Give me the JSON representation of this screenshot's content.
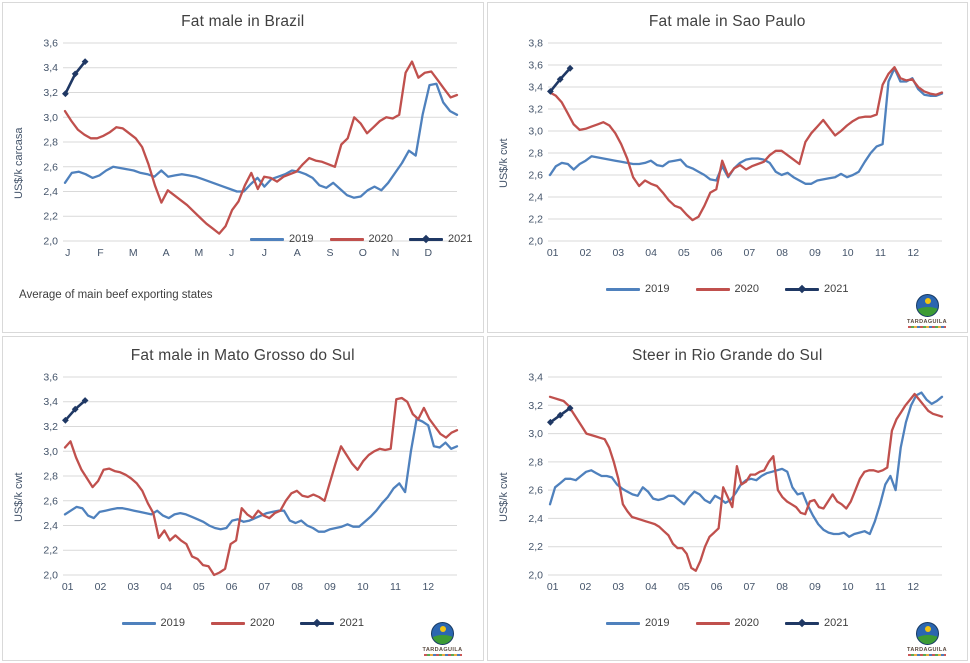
{
  "style": {
    "grid_color": "#d9d9d9",
    "axis_text_color": "#44546a",
    "title_color": "#404040",
    "panel_border_color": "#d9d9d9",
    "series_colors": {
      "y2019": "#4f81bd",
      "y2020": "#c0504d",
      "y2021": "#1f3864"
    }
  },
  "logo": {
    "text": "TARDAGUILA"
  },
  "chart_data": [
    {
      "type": "line",
      "title": "Fat male in Brazil",
      "ylabel": "US$/k carcasa",
      "footnote": "Average of main beef exporting states",
      "ylim": [
        2.0,
        3.6
      ],
      "ytick_step": 0.2,
      "yticks": [
        "2,0",
        "2,2",
        "2,4",
        "2,6",
        "2,8",
        "3,0",
        "3,2",
        "3,4",
        "3,6"
      ],
      "xlabels": [
        "J",
        "F",
        "M",
        "A",
        "M",
        "J",
        "J",
        "A",
        "S",
        "O",
        "N",
        "D"
      ],
      "grid": true,
      "legend_position": "inside-bottom-right",
      "series": [
        {
          "name": "2019",
          "color": "#4f81bd",
          "values": [
            2.47,
            2.55,
            2.56,
            2.54,
            2.51,
            2.53,
            2.57,
            2.6,
            2.59,
            2.58,
            2.57,
            2.55,
            2.54,
            2.52,
            2.57,
            2.52,
            2.53,
            2.54,
            2.53,
            2.52,
            2.5,
            2.48,
            2.46,
            2.44,
            2.42,
            2.4,
            2.4,
            2.46,
            2.51,
            2.44,
            2.5,
            2.52,
            2.54,
            2.57,
            2.56,
            2.54,
            2.51,
            2.45,
            2.43,
            2.47,
            2.42,
            2.37,
            2.35,
            2.36,
            2.41,
            2.44,
            2.41,
            2.47,
            2.55,
            2.63,
            2.73,
            2.69,
            3.02,
            3.26,
            3.27,
            3.12,
            3.05,
            3.02
          ]
        },
        {
          "name": "2020",
          "color": "#c0504d",
          "values": [
            3.05,
            2.97,
            2.9,
            2.86,
            2.83,
            2.83,
            2.85,
            2.88,
            2.92,
            2.91,
            2.87,
            2.83,
            2.76,
            2.62,
            2.45,
            2.31,
            2.41,
            2.37,
            2.33,
            2.29,
            2.24,
            2.19,
            2.14,
            2.1,
            2.06,
            2.12,
            2.25,
            2.32,
            2.45,
            2.55,
            2.42,
            2.52,
            2.51,
            2.48,
            2.52,
            2.54,
            2.56,
            2.62,
            2.67,
            2.65,
            2.64,
            2.62,
            2.6,
            2.78,
            2.83,
            3.0,
            2.95,
            2.87,
            2.92,
            2.97,
            3.0,
            2.99,
            3.02,
            3.36,
            3.45,
            3.32,
            3.36,
            3.37,
            3.3,
            3.23,
            3.16,
            3.18
          ]
        },
        {
          "name": "2021",
          "color": "#1f3864",
          "marker": "diamond",
          "span": [
            0.006,
            0.056
          ],
          "values": [
            3.19,
            3.35,
            3.45
          ]
        }
      ]
    },
    {
      "type": "line",
      "title": "Fat male in Sao Paulo",
      "ylabel": "US$/k cwt",
      "ylim": [
        2.0,
        3.8
      ],
      "ytick_step": 0.2,
      "yticks": [
        "2,0",
        "2,2",
        "2,4",
        "2,6",
        "2,8",
        "3,0",
        "3,2",
        "3,4",
        "3,6",
        "3,8"
      ],
      "xlabels": [
        "01",
        "02",
        "03",
        "04",
        "05",
        "06",
        "07",
        "08",
        "09",
        "10",
        "11",
        "12"
      ],
      "grid": true,
      "legend_position": "bottom-center",
      "has_logo": true,
      "series": [
        {
          "name": "2019",
          "color": "#4f81bd",
          "values": [
            2.6,
            2.68,
            2.71,
            2.7,
            2.65,
            2.7,
            2.73,
            2.77,
            2.76,
            2.75,
            2.74,
            2.73,
            2.72,
            2.71,
            2.7,
            2.7,
            2.71,
            2.73,
            2.69,
            2.68,
            2.72,
            2.73,
            2.74,
            2.68,
            2.66,
            2.63,
            2.6,
            2.56,
            2.55,
            2.68,
            2.58,
            2.66,
            2.71,
            2.74,
            2.75,
            2.75,
            2.74,
            2.71,
            2.63,
            2.6,
            2.62,
            2.58,
            2.55,
            2.52,
            2.52,
            2.55,
            2.56,
            2.57,
            2.58,
            2.61,
            2.58,
            2.6,
            2.63,
            2.72,
            2.8,
            2.86,
            2.88,
            3.45,
            3.57,
            3.45,
            3.45,
            3.48,
            3.38,
            3.33,
            3.32,
            3.32,
            3.34
          ]
        },
        {
          "name": "2020",
          "color": "#c0504d",
          "values": [
            3.35,
            3.32,
            3.26,
            3.16,
            3.06,
            3.01,
            3.02,
            3.04,
            3.06,
            3.08,
            3.05,
            2.98,
            2.88,
            2.75,
            2.58,
            2.5,
            2.55,
            2.52,
            2.5,
            2.44,
            2.37,
            2.32,
            2.3,
            2.24,
            2.19,
            2.22,
            2.32,
            2.44,
            2.47,
            2.73,
            2.59,
            2.66,
            2.69,
            2.65,
            2.68,
            2.7,
            2.72,
            2.78,
            2.82,
            2.82,
            2.78,
            2.74,
            2.7,
            2.9,
            2.98,
            3.04,
            3.1,
            3.03,
            2.96,
            3.0,
            3.05,
            3.09,
            3.12,
            3.13,
            3.13,
            3.15,
            3.42,
            3.52,
            3.58,
            3.48,
            3.46,
            3.47,
            3.4,
            3.36,
            3.34,
            3.33,
            3.35
          ]
        },
        {
          "name": "2021",
          "color": "#1f3864",
          "marker": "diamond",
          "span": [
            0.006,
            0.056
          ],
          "values": [
            3.36,
            3.47,
            3.57
          ]
        }
      ]
    },
    {
      "type": "line",
      "title": "Fat male in Mato Grosso do Sul",
      "ylabel": "US$/k cwt",
      "ylim": [
        2.0,
        3.6
      ],
      "ytick_step": 0.2,
      "yticks": [
        "2,0",
        "2,2",
        "2,4",
        "2,6",
        "2,8",
        "3,0",
        "3,2",
        "3,4",
        "3,6"
      ],
      "xlabels": [
        "01",
        "02",
        "03",
        "04",
        "05",
        "06",
        "07",
        "08",
        "09",
        "10",
        "11",
        "12"
      ],
      "grid": true,
      "legend_position": "bottom-center",
      "has_logo": true,
      "series": [
        {
          "name": "2019",
          "color": "#4f81bd",
          "values": [
            2.49,
            2.52,
            2.55,
            2.54,
            2.48,
            2.46,
            2.51,
            2.52,
            2.53,
            2.54,
            2.54,
            2.53,
            2.52,
            2.51,
            2.5,
            2.49,
            2.52,
            2.48,
            2.46,
            2.49,
            2.5,
            2.49,
            2.47,
            2.45,
            2.43,
            2.4,
            2.38,
            2.37,
            2.38,
            2.44,
            2.45,
            2.43,
            2.44,
            2.46,
            2.48,
            2.5,
            2.51,
            2.52,
            2.52,
            2.44,
            2.42,
            2.44,
            2.4,
            2.38,
            2.35,
            2.35,
            2.37,
            2.38,
            2.39,
            2.41,
            2.39,
            2.39,
            2.43,
            2.47,
            2.52,
            2.58,
            2.63,
            2.7,
            2.74,
            2.67,
            3.0,
            3.26,
            3.24,
            3.21,
            3.04,
            3.03,
            3.07,
            3.02,
            3.04
          ]
        },
        {
          "name": "2020",
          "color": "#c0504d",
          "values": [
            3.03,
            3.08,
            2.95,
            2.85,
            2.78,
            2.71,
            2.76,
            2.85,
            2.86,
            2.84,
            2.83,
            2.81,
            2.78,
            2.74,
            2.68,
            2.58,
            2.5,
            2.3,
            2.36,
            2.28,
            2.32,
            2.28,
            2.25,
            2.15,
            2.13,
            2.08,
            2.07,
            2.0,
            2.02,
            2.05,
            2.25,
            2.28,
            2.54,
            2.49,
            2.46,
            2.52,
            2.48,
            2.46,
            2.5,
            2.52,
            2.6,
            2.66,
            2.68,
            2.64,
            2.63,
            2.65,
            2.63,
            2.6,
            2.75,
            2.9,
            3.04,
            2.97,
            2.9,
            2.85,
            2.92,
            2.97,
            3.0,
            3.02,
            3.01,
            3.02,
            3.42,
            3.43,
            3.4,
            3.3,
            3.26,
            3.35,
            3.26,
            3.2,
            3.14,
            3.11,
            3.15,
            3.17
          ]
        },
        {
          "name": "2021",
          "color": "#1f3864",
          "marker": "diamond",
          "span": [
            0.006,
            0.056
          ],
          "values": [
            3.25,
            3.34,
            3.41
          ]
        }
      ]
    },
    {
      "type": "line",
      "title": "Steer in Rio Grande do Sul",
      "ylabel": "US$/k cwt",
      "ylim": [
        2.0,
        3.4
      ],
      "ytick_step": 0.2,
      "yticks": [
        "2,0",
        "2,2",
        "2,4",
        "2,6",
        "2,8",
        "3,0",
        "3,2",
        "3,4"
      ],
      "xlabels": [
        "01",
        "02",
        "03",
        "04",
        "05",
        "06",
        "07",
        "08",
        "09",
        "10",
        "11",
        "12"
      ],
      "grid": true,
      "legend_position": "bottom-center",
      "has_logo": true,
      "series": [
        {
          "name": "2019",
          "color": "#4f81bd",
          "values": [
            2.5,
            2.62,
            2.65,
            2.68,
            2.68,
            2.67,
            2.7,
            2.73,
            2.74,
            2.72,
            2.7,
            2.7,
            2.69,
            2.64,
            2.61,
            2.59,
            2.57,
            2.56,
            2.62,
            2.59,
            2.54,
            2.53,
            2.54,
            2.56,
            2.56,
            2.53,
            2.5,
            2.55,
            2.59,
            2.57,
            2.53,
            2.51,
            2.56,
            2.54,
            2.51,
            2.53,
            2.58,
            2.64,
            2.67,
            2.68,
            2.67,
            2.7,
            2.72,
            2.73,
            2.74,
            2.75,
            2.73,
            2.62,
            2.57,
            2.58,
            2.49,
            2.42,
            2.36,
            2.32,
            2.3,
            2.29,
            2.29,
            2.3,
            2.27,
            2.29,
            2.3,
            2.31,
            2.29,
            2.38,
            2.5,
            2.64,
            2.7,
            2.6,
            2.9,
            3.08,
            3.2,
            3.27,
            3.29,
            3.24,
            3.21,
            3.23,
            3.26
          ]
        },
        {
          "name": "2020",
          "color": "#c0504d",
          "values": [
            3.26,
            3.25,
            3.24,
            3.23,
            3.2,
            3.15,
            3.1,
            3.05,
            3.0,
            2.99,
            2.98,
            2.97,
            2.96,
            2.9,
            2.8,
            2.68,
            2.5,
            2.45,
            2.41,
            2.4,
            2.39,
            2.38,
            2.37,
            2.36,
            2.34,
            2.31,
            2.28,
            2.22,
            2.19,
            2.19,
            2.15,
            2.05,
            2.03,
            2.1,
            2.2,
            2.27,
            2.3,
            2.33,
            2.62,
            2.55,
            2.48,
            2.77,
            2.64,
            2.66,
            2.71,
            2.71,
            2.73,
            2.74,
            2.8,
            2.84,
            2.6,
            2.55,
            2.52,
            2.5,
            2.48,
            2.44,
            2.43,
            2.52,
            2.53,
            2.48,
            2.47,
            2.52,
            2.57,
            2.52,
            2.5,
            2.47,
            2.52,
            2.6,
            2.68,
            2.73,
            2.74,
            2.74,
            2.73,
            2.74,
            2.76,
            3.02,
            3.1,
            3.15,
            3.2,
            3.24,
            3.28,
            3.24,
            3.2,
            3.16,
            3.14,
            3.13,
            3.12
          ]
        },
        {
          "name": "2021",
          "color": "#1f3864",
          "marker": "diamond",
          "span": [
            0.006,
            0.056
          ],
          "values": [
            3.08,
            3.13,
            3.18
          ]
        }
      ]
    }
  ]
}
